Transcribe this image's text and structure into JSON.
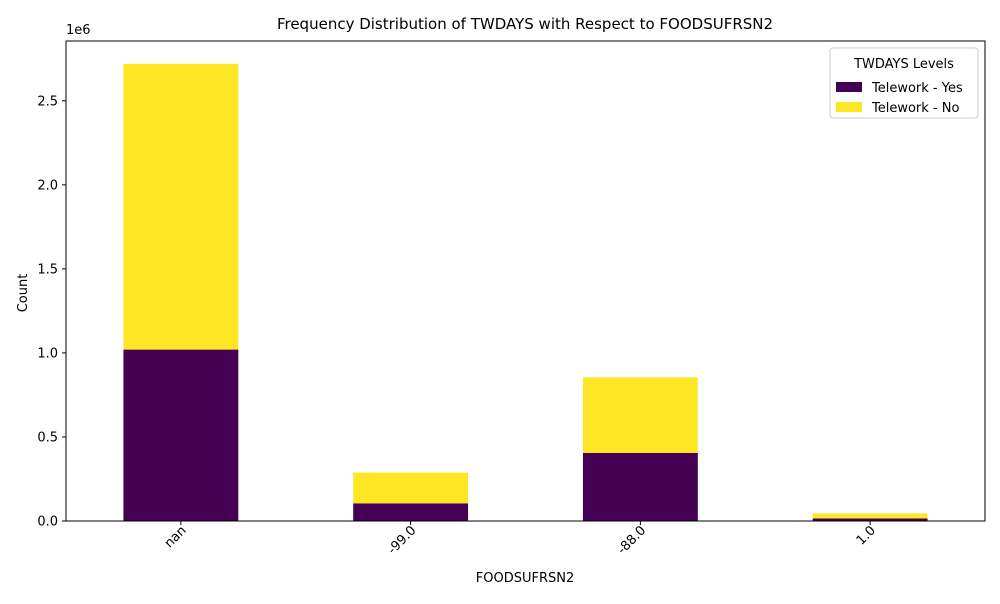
{
  "chart_data": {
    "type": "bar",
    "stacked": true,
    "title": "Frequency Distribution of TWDAYS with Respect to FOODSUFRSN2",
    "xlabel": "FOODSUFRSN2",
    "ylabel": "Count",
    "y_offset_label": "1e6",
    "y_tick_scale": 1000000,
    "categories": [
      "nan",
      "-99.0",
      "-88.0",
      "1.0"
    ],
    "series": [
      {
        "name": "Telework - Yes",
        "color": "#440154",
        "values": [
          1020000,
          105000,
          405000,
          15000
        ]
      },
      {
        "name": "Telework - No",
        "color": "#fde725",
        "values": [
          1700000,
          183000,
          450000,
          30000
        ]
      }
    ],
    "ylim": [
      0,
      2856000
    ],
    "yticks": [
      0,
      500000,
      1000000,
      1500000,
      2000000,
      2500000
    ],
    "ytick_labels": [
      "0.0",
      "0.5",
      "1.0",
      "1.5",
      "2.0",
      "2.5"
    ],
    "legend": {
      "title": "TWDAYS Levels",
      "placement": "top-right"
    },
    "grid": false
  }
}
